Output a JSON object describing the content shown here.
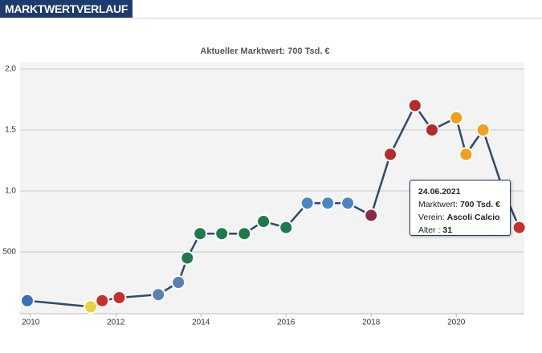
{
  "header": {
    "title": "MARKTWERTVERLAUF"
  },
  "chart_data": {
    "type": "line",
    "title": "Aktueller Marktwert: 700 Tsd. €",
    "x": [
      2009.92,
      2011.41,
      2011.68,
      2012.08,
      2013.0,
      2013.47,
      2013.68,
      2013.98,
      2014.49,
      2015.02,
      2015.47,
      2016.0,
      2016.5,
      2016.98,
      2017.45,
      2018.0,
      2018.45,
      2019.03,
      2019.43,
      2020.0,
      2020.23,
      2020.63,
      2021.11,
      2021.48
    ],
    "series": [
      {
        "color": "#2f4b6b",
        "values": [
          100,
          50,
          100,
          125,
          150,
          250,
          450,
          650,
          650,
          650,
          750,
          700,
          900,
          900,
          900,
          800,
          1300,
          1700,
          1500,
          1600,
          1300,
          1500,
          1000,
          700
        ],
        "marker_colors": [
          "#3a6fb0",
          "#e8d33a",
          "#c8302c",
          "#c8302c",
          "#5a7fb5",
          "#5a7fb5",
          "#1e7a4a",
          "#1e7a4a",
          "#1e7a4a",
          "#1e7a4a",
          "#1e7a4a",
          "#1e7a4a",
          "#4a86c5",
          "#4a86c5",
          "#4a86c5",
          "#8a2a4a",
          "#b52a2a",
          "#b52a2a",
          "#b52a2a",
          "#f2a01c",
          "#f2a01c",
          "#f2a01c",
          "#d9d9d9",
          "#c8302c"
        ]
      }
    ],
    "xlim": [
      2009.75,
      2021.6
    ],
    "xticks": [
      2010,
      2012,
      2014,
      2016,
      2018,
      2020
    ],
    "ylim": [
      0,
      2000
    ],
    "yticks": [
      500,
      {
        "value": 1000,
        "label": "1,0"
      },
      {
        "value": 1500,
        "label": "1,5"
      },
      {
        "value": 2000,
        "label": "2,0"
      }
    ],
    "grid": true,
    "tooltip": {
      "date": "24.06.2021",
      "value_label": "Marktwert:",
      "value": "700 Tsd. €",
      "club_label": "Verein:",
      "club": "Ascoli Calcio",
      "age_label": "Alter :",
      "age": "31"
    }
  }
}
